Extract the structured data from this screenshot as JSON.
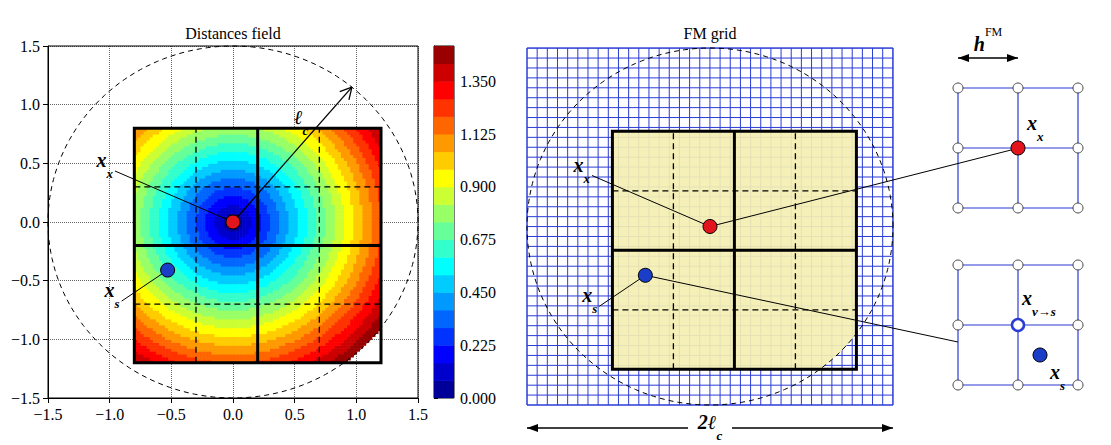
{
  "chart_data": {
    "type": "contour",
    "title": "Distances field",
    "xlim": [
      -1.5,
      1.5
    ],
    "ylim": [
      -1.5,
      1.5
    ],
    "xticks": [
      {
        "value": -1.5,
        "label": "−1.5"
      },
      {
        "value": -1,
        "label": "−1.0"
      },
      {
        "value": -0.5,
        "label": "−0.5"
      },
      {
        "value": 0,
        "label": "0.0"
      },
      0.5,
      {
        "value": 1,
        "label": "1.0"
      },
      1.5
    ],
    "yticks": [
      {
        "value": -1.5,
        "label": "−1.5"
      },
      {
        "value": -1,
        "label": "−1.0"
      },
      {
        "value": -0.5,
        "label": "−0.5"
      },
      {
        "value": 0,
        "label": "0.0"
      },
      0.5,
      {
        "value": 1,
        "label": "1.0"
      },
      1.5
    ],
    "grid": true,
    "colorbar": {
      "range": [
        0,
        1.5
      ],
      "ticks": [
        {
          "value": 0,
          "label": "0.000"
        },
        0.225,
        {
          "value": 0.45,
          "label": "0.450"
        },
        0.675,
        {
          "value": 0.9,
          "label": "0.900"
        },
        1.125,
        {
          "value": 1.35,
          "label": "1.350"
        }
      ],
      "contour_step": 0.075
    }
  },
  "geometry": {
    "domain": {
      "x": [
        -0.8,
        1.2
      ],
      "y": [
        -1.2,
        0.8
      ]
    },
    "cutoff_radius": 1.5,
    "radius_label": {
      "base": "ℓ",
      "sub": "c"
    },
    "thick_lines": {
      "x": [
        0.2
      ],
      "y": [
        -0.2
      ]
    },
    "dashed_lines": {
      "x": [
        -0.3,
        0.7
      ],
      "y": [
        0.3,
        -0.7
      ]
    },
    "points": [
      {
        "label": {
          "base": "x",
          "sub": "x"
        },
        "x": 0,
        "y": 0,
        "color": "#e3151c"
      },
      {
        "label": {
          "base": "x",
          "sub": "s"
        },
        "x": -0.53,
        "y": -0.41,
        "color": "#1b3ec8"
      }
    ]
  },
  "fm_grid": {
    "title": "FM grid",
    "step": 0.0833,
    "fill": "#f4efb2",
    "line_color": "#2b3bd6",
    "extent_label": {
      "base": "2ℓ",
      "sub": "c"
    }
  },
  "zoom": {
    "step_label": {
      "base": "h",
      "sup": "FM"
    },
    "projection_label": {
      "base": "x",
      "sub": "v→s"
    }
  }
}
